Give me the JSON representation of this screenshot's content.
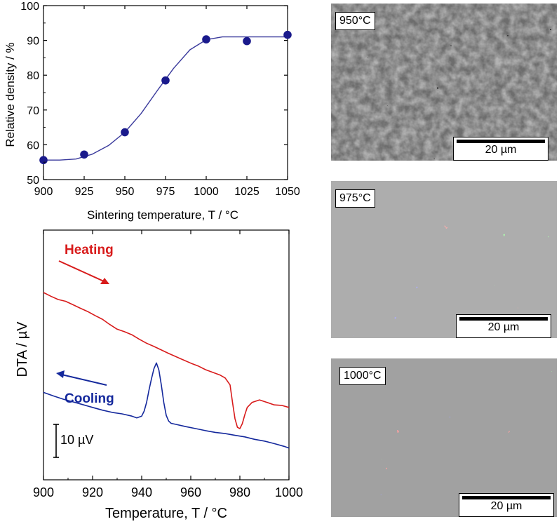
{
  "chart_data": [
    {
      "type": "scatter",
      "xlabel": "Sintering temperature, T / °C",
      "ylabel": "Relative density / %",
      "xlim": [
        900,
        1050
      ],
      "ylim": [
        50,
        100
      ],
      "xticks": [
        900,
        925,
        950,
        975,
        1000,
        1025,
        1050
      ],
      "yticks": [
        50,
        60,
        70,
        80,
        90,
        100
      ],
      "grid": false,
      "marker_color": "#1a1a8c",
      "fit_color": "#3a3a9c",
      "series": [
        {
          "x": [
            900,
            925,
            950,
            975,
            1000,
            1025,
            1050
          ],
          "values": [
            55.6,
            57.2,
            63.6,
            78.5,
            90.3,
            89.8,
            91.6
          ]
        }
      ],
      "fit_curve": {
        "x": [
          900,
          910,
          920,
          930,
          940,
          950,
          960,
          970,
          980,
          990,
          1000,
          1010,
          1020,
          1030,
          1040,
          1050
        ],
        "values": [
          55.6,
          55.6,
          55.9,
          57.3,
          59.8,
          63.6,
          69.0,
          75.6,
          82.0,
          87.3,
          90.2,
          91.0,
          91.0,
          91.0,
          91.0,
          91.0
        ]
      }
    },
    {
      "type": "line",
      "xlabel": "Temperature, T / °C",
      "ylabel": "DTA / µV",
      "xlim": [
        900,
        1000
      ],
      "xticks": [
        900,
        920,
        940,
        960,
        980,
        1000
      ],
      "grid": false,
      "scale_bar_label": "10 µV",
      "series": [
        {
          "name": "Heating",
          "color": "#d81b1b",
          "direction": "right",
          "x": [
            900,
            903,
            906,
            909,
            912,
            915,
            918,
            921,
            924,
            927,
            930,
            933,
            936,
            939,
            942,
            945,
            948,
            951,
            954,
            957,
            960,
            963,
            966,
            969,
            972,
            974,
            976,
            977,
            978,
            979,
            980,
            981,
            982,
            983,
            985,
            988,
            991,
            994,
            997,
            1000
          ],
          "values": [
            75.0,
            73.5,
            72.2,
            71.5,
            70.1,
            68.7,
            67.4,
            65.8,
            64.3,
            62.2,
            60.3,
            59.3,
            58.1,
            56.3,
            54.7,
            53.4,
            52.0,
            50.6,
            49.3,
            48.0,
            46.7,
            45.6,
            44.1,
            43.0,
            41.9,
            40.8,
            38.0,
            31.0,
            24.5,
            21.0,
            20.5,
            22.5,
            26.0,
            29.0,
            31.0,
            32.0,
            31.0,
            30.0,
            29.8,
            29.0
          ]
        },
        {
          "name": "Cooling",
          "color": "#14289c",
          "direction": "left",
          "x": [
            900,
            904,
            908,
            912,
            916,
            920,
            924,
            928,
            932,
            936,
            938,
            940,
            941,
            942,
            943,
            944,
            945,
            946,
            947,
            948,
            949,
            950,
            951,
            952,
            954,
            958,
            962,
            966,
            970,
            974,
            978,
            982,
            986,
            990,
            994,
            998,
            1000
          ],
          "values": [
            35.0,
            33.6,
            32.3,
            31.2,
            30.1,
            29.0,
            27.9,
            27.0,
            26.4,
            25.5,
            24.8,
            25.5,
            27.5,
            31.0,
            36.0,
            40.5,
            44.5,
            46.8,
            44.0,
            38.0,
            31.0,
            25.8,
            23.5,
            22.6,
            22.2,
            21.3,
            20.5,
            19.7,
            19.0,
            18.5,
            17.8,
            17.2,
            16.2,
            15.5,
            14.5,
            13.4,
            12.7
          ]
        }
      ]
    }
  ],
  "sem_images": [
    {
      "label": "950°C",
      "scale_bar": "20 µm"
    },
    {
      "label": "975°C",
      "scale_bar": "20 µm"
    },
    {
      "label": "1000°C",
      "scale_bar": "20 µm"
    }
  ]
}
